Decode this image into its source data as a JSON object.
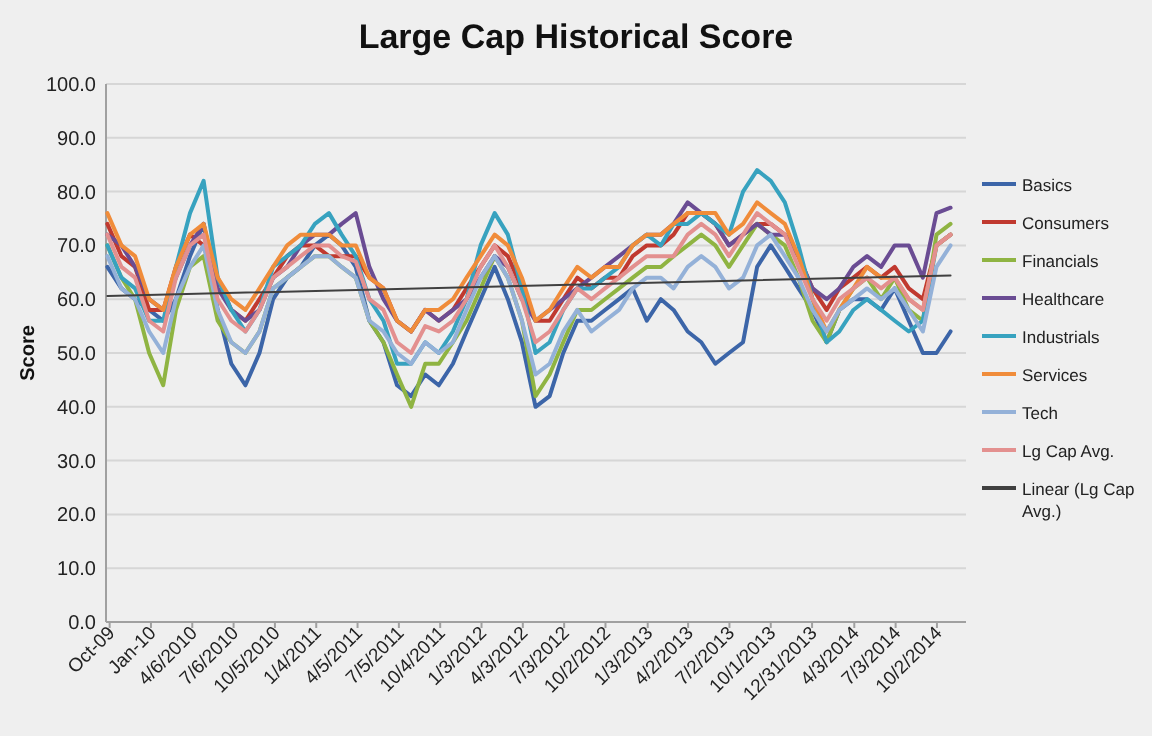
{
  "chart_data": {
    "type": "line",
    "title": "Large Cap Historical Score",
    "ylabel": "Score",
    "x": [
      "2009-10",
      "2009-11",
      "2009-12",
      "2010-01",
      "2010-02",
      "2010-03",
      "2010-04",
      "2010-05",
      "2010-06",
      "2010-07",
      "2010-08",
      "2010-09",
      "2010-10",
      "2010-11",
      "2010-12",
      "2011-01",
      "2011-02",
      "2011-03",
      "2011-04",
      "2011-05",
      "2011-06",
      "2011-07",
      "2011-08",
      "2011-09",
      "2011-10",
      "2011-11",
      "2011-12",
      "2012-01",
      "2012-02",
      "2012-03",
      "2012-04",
      "2012-05",
      "2012-06",
      "2012-07",
      "2012-08",
      "2012-09",
      "2012-10",
      "2012-11",
      "2012-12",
      "2013-01",
      "2013-02",
      "2013-03",
      "2013-04",
      "2013-05",
      "2013-06",
      "2013-07",
      "2013-08",
      "2013-09",
      "2013-10",
      "2013-11",
      "2013-12",
      "2014-01",
      "2014-02",
      "2014-03",
      "2014-04",
      "2014-05",
      "2014-06",
      "2014-07",
      "2014-08",
      "2014-09",
      "2014-10",
      "2014-11"
    ],
    "xlim": [
      "2009-09-28",
      "2014-12-05"
    ],
    "xticks": [
      {
        "value": "2009-10-06",
        "label": "Oct-09"
      },
      {
        "value": "2010-01-05",
        "label": "Jan-10"
      },
      {
        "value": "2010-04-06",
        "label": "4/6/2010"
      },
      {
        "value": "2010-07-06",
        "label": "7/6/2010"
      },
      {
        "value": "2010-10-05",
        "label": "10/5/2010"
      },
      {
        "value": "2011-01-04",
        "label": "1/4/2011"
      },
      {
        "value": "2011-04-05",
        "label": "4/5/2011"
      },
      {
        "value": "2011-07-05",
        "label": "7/5/2011"
      },
      {
        "value": "2011-10-04",
        "label": "10/4/2011"
      },
      {
        "value": "2012-01-03",
        "label": "1/3/2012"
      },
      {
        "value": "2012-04-03",
        "label": "4/3/2012"
      },
      {
        "value": "2012-07-03",
        "label": "7/3/2012"
      },
      {
        "value": "2012-10-02",
        "label": "10/2/2012"
      },
      {
        "value": "2013-01-03",
        "label": "1/3/2013"
      },
      {
        "value": "2013-04-02",
        "label": "4/2/2013"
      },
      {
        "value": "2013-07-02",
        "label": "7/2/2013"
      },
      {
        "value": "2013-10-01",
        "label": "10/1/2013"
      },
      {
        "value": "2013-12-31",
        "label": "12/31/2013"
      },
      {
        "value": "2014-04-03",
        "label": "4/3/2014"
      },
      {
        "value": "2014-07-03",
        "label": "7/3/2014"
      },
      {
        "value": "2014-10-02",
        "label": "10/2/2014"
      }
    ],
    "ylim": [
      0,
      100
    ],
    "yticks": [
      {
        "value": 0,
        "label": "0.0"
      },
      {
        "value": 10,
        "label": "10.0"
      },
      {
        "value": 20,
        "label": "20.0"
      },
      {
        "value": 30,
        "label": "30.0"
      },
      {
        "value": 40,
        "label": "40.0"
      },
      {
        "value": 50,
        "label": "50.0"
      },
      {
        "value": 60,
        "label": "60.0"
      },
      {
        "value": 70,
        "label": "70.0"
      },
      {
        "value": 80,
        "label": "80.0"
      },
      {
        "value": 90,
        "label": "90.0"
      },
      {
        "value": 100,
        "label": "100.0"
      }
    ],
    "grid": "y",
    "legend": "right",
    "marker": "none",
    "series": [
      {
        "name": "Basics",
        "color": "#3c65a8",
        "values": [
          66,
          62,
          60,
          58,
          56,
          60,
          68,
          74,
          58,
          48,
          44,
          50,
          60,
          64,
          66,
          70,
          72,
          70,
          66,
          56,
          52,
          44,
          42,
          46,
          44,
          48,
          54,
          60,
          66,
          60,
          52,
          40,
          42,
          50,
          56,
          56,
          58,
          60,
          62,
          56,
          60,
          58,
          54,
          52,
          48,
          50,
          52,
          66,
          70,
          66,
          62,
          58,
          52,
          58,
          60,
          60,
          58,
          62,
          56,
          50,
          50,
          54
        ]
      },
      {
        "name": "Consumers",
        "color": "#c0392f",
        "values": [
          74,
          68,
          66,
          58,
          58,
          66,
          72,
          70,
          64,
          58,
          56,
          60,
          64,
          68,
          70,
          70,
          68,
          68,
          68,
          64,
          62,
          56,
          54,
          58,
          56,
          58,
          62,
          66,
          70,
          68,
          62,
          56,
          56,
          60,
          64,
          62,
          64,
          64,
          68,
          70,
          70,
          72,
          76,
          76,
          74,
          70,
          72,
          74,
          74,
          72,
          68,
          62,
          58,
          62,
          64,
          66,
          64,
          66,
          62,
          60,
          70,
          72
        ]
      },
      {
        "name": "Financials",
        "color": "#8fb442",
        "values": [
          70,
          64,
          60,
          50,
          44,
          58,
          66,
          68,
          56,
          52,
          50,
          54,
          62,
          64,
          66,
          68,
          68,
          66,
          64,
          56,
          52,
          46,
          40,
          48,
          48,
          52,
          56,
          62,
          68,
          64,
          56,
          42,
          46,
          52,
          58,
          58,
          60,
          62,
          64,
          66,
          66,
          68,
          70,
          72,
          70,
          66,
          70,
          74,
          72,
          70,
          64,
          56,
          52,
          58,
          62,
          64,
          60,
          64,
          58,
          56,
          72,
          74
        ]
      },
      {
        "name": "Healthcare",
        "color": "#6a4c93",
        "values": [
          72,
          70,
          66,
          60,
          58,
          64,
          70,
          74,
          62,
          58,
          56,
          58,
          64,
          66,
          70,
          72,
          72,
          74,
          76,
          66,
          60,
          56,
          54,
          58,
          56,
          58,
          60,
          64,
          68,
          66,
          60,
          56,
          58,
          60,
          62,
          64,
          66,
          68,
          70,
          72,
          72,
          74,
          78,
          76,
          74,
          70,
          72,
          74,
          72,
          72,
          68,
          62,
          60,
          62,
          66,
          68,
          66,
          70,
          70,
          64,
          76,
          77
        ]
      },
      {
        "name": "Industrials",
        "color": "#37a2bf",
        "values": [
          70,
          64,
          62,
          56,
          56,
          66,
          76,
          82,
          64,
          58,
          54,
          58,
          66,
          68,
          70,
          74,
          76,
          72,
          68,
          60,
          56,
          48,
          48,
          52,
          50,
          54,
          60,
          70,
          76,
          72,
          62,
          50,
          52,
          58,
          62,
          62,
          64,
          66,
          70,
          72,
          70,
          74,
          74,
          76,
          74,
          72,
          80,
          84,
          82,
          78,
          70,
          60,
          52,
          54,
          58,
          60,
          58,
          56,
          54,
          56,
          70,
          72
        ]
      },
      {
        "name": "Services",
        "color": "#f08c3a",
        "values": [
          76,
          70,
          68,
          60,
          58,
          66,
          72,
          74,
          64,
          60,
          58,
          62,
          66,
          70,
          72,
          72,
          72,
          70,
          70,
          64,
          62,
          56,
          54,
          58,
          58,
          60,
          64,
          68,
          72,
          70,
          64,
          56,
          58,
          62,
          66,
          64,
          66,
          66,
          70,
          72,
          72,
          74,
          76,
          76,
          76,
          72,
          74,
          78,
          76,
          74,
          68,
          60,
          54,
          58,
          62,
          66,
          64,
          64,
          60,
          58,
          70,
          72
        ]
      },
      {
        "name": "Tech",
        "color": "#94b1d8",
        "values": [
          68,
          62,
          60,
          54,
          50,
          60,
          66,
          70,
          58,
          52,
          50,
          54,
          62,
          64,
          66,
          68,
          68,
          66,
          64,
          56,
          54,
          50,
          48,
          52,
          50,
          52,
          58,
          64,
          68,
          64,
          56,
          46,
          48,
          54,
          58,
          54,
          56,
          58,
          62,
          64,
          64,
          62,
          66,
          68,
          66,
          62,
          64,
          70,
          72,
          68,
          64,
          58,
          54,
          58,
          60,
          62,
          60,
          62,
          58,
          54,
          66,
          70
        ]
      },
      {
        "name": "Lg Cap Avg.",
        "color": "#e3908f",
        "values": [
          72,
          66,
          64,
          56,
          54,
          64,
          70,
          72,
          60,
          56,
          54,
          58,
          64,
          66,
          68,
          70,
          70,
          68,
          67,
          60,
          58,
          52,
          50,
          55,
          54,
          56,
          60,
          66,
          70,
          66,
          60,
          52,
          54,
          58,
          62,
          60,
          62,
          64,
          66,
          68,
          68,
          68,
          72,
          74,
          72,
          68,
          72,
          76,
          74,
          72,
          66,
          60,
          56,
          60,
          62,
          64,
          62,
          64,
          60,
          58,
          70,
          72
        ]
      },
      {
        "name": "Linear (Lg Cap Avg.)",
        "color": "#404040",
        "type": "line",
        "x": [
          "2009-10",
          "2014-11"
        ],
        "values": [
          60.6,
          64.4
        ]
      }
    ]
  }
}
